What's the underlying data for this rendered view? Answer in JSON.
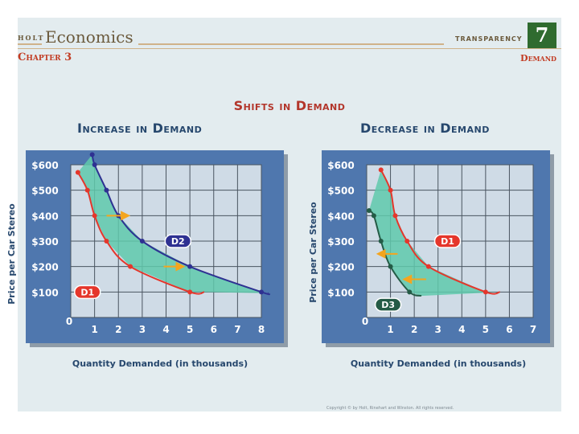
{
  "header": {
    "brand_small": "HOLT",
    "brand": "Economics",
    "transparency_label": "TRANSPARENCY",
    "transparency_number": "7",
    "chapter": "Chapter 3",
    "topic": "Demand"
  },
  "title": "Shifts in Demand",
  "footer": "Copyright © by Holt, Rinehart and Winston. All rights reserved.",
  "colors": {
    "sheet": "#e3ecef",
    "panel_blue": "#4f77ae",
    "plot_bg": "#cfdbe6",
    "d1_red": "#e5362b",
    "d2_navy": "#2e3192",
    "d3_green": "#245b46",
    "shift_fill": "#5fc9ab",
    "arrow_orange": "#f4a51e"
  },
  "chart_data": [
    {
      "type": "line",
      "title": "Increase in Demand",
      "xlabel": "Quantity Demanded (in thousands)",
      "ylabel": "Price per Car Stereo",
      "x_ticks": [
        "0",
        "1",
        "2",
        "3",
        "4",
        "5",
        "6",
        "7",
        "8"
      ],
      "y_ticks": [
        "$100",
        "$200",
        "$300",
        "$400",
        "$500",
        "$600"
      ],
      "xlim": [
        0,
        8
      ],
      "ylim": [
        0,
        600
      ],
      "grid": true,
      "shaded_between_curves": true,
      "series": [
        {
          "name": "D1",
          "points": [
            [
              0.3,
              570
            ],
            [
              0.7,
              500
            ],
            [
              1,
              400
            ],
            [
              1.5,
              300
            ],
            [
              2.5,
              200
            ],
            [
              5,
              100
            ],
            [
              5.6,
              100
            ]
          ]
        },
        {
          "name": "D2",
          "points": [
            [
              0.9,
              640
            ],
            [
              1,
              600
            ],
            [
              1.5,
              500
            ],
            [
              2,
              400
            ],
            [
              3,
              300
            ],
            [
              5,
              200
            ],
            [
              8,
              100
            ],
            [
              8.3,
              95
            ]
          ]
        }
      ],
      "curve_labels": [
        {
          "series": "D1",
          "text": "D1",
          "at": [
            0.7,
            100
          ]
        },
        {
          "series": "D2",
          "text": "D2",
          "at": [
            4.5,
            300
          ]
        }
      ],
      "shift_arrows": [
        {
          "from": [
            1.5,
            400
          ],
          "to": [
            2.3,
            400
          ]
        },
        {
          "from": [
            3.9,
            200
          ],
          "to": [
            4.6,
            200
          ]
        }
      ]
    },
    {
      "type": "line",
      "title": "Decrease in Demand",
      "xlabel": "Quantity Demanded (in thousands)",
      "ylabel": "Price per Car Stereo",
      "x_ticks": [
        "0",
        "1",
        "2",
        "3",
        "4",
        "5",
        "6",
        "7"
      ],
      "y_ticks": [
        "$100",
        "$200",
        "$300",
        "$400",
        "$500",
        "$600"
      ],
      "xlim": [
        0,
        7
      ],
      "ylim": [
        0,
        600
      ],
      "grid": true,
      "shaded_between_curves": true,
      "series": [
        {
          "name": "D1",
          "points": [
            [
              0.6,
              580
            ],
            [
              1,
              500
            ],
            [
              1.2,
              400
            ],
            [
              1.7,
              300
            ],
            [
              2.6,
              200
            ],
            [
              5,
              100
            ],
            [
              5.6,
              100
            ]
          ]
        },
        {
          "name": "D3",
          "points": [
            [
              0.1,
              420
            ],
            [
              0.3,
              400
            ],
            [
              0.6,
              300
            ],
            [
              1,
              200
            ],
            [
              1.8,
              100
            ],
            [
              2.3,
              85
            ]
          ]
        }
      ],
      "curve_labels": [
        {
          "series": "D1",
          "text": "D1",
          "at": [
            3.4,
            300
          ]
        },
        {
          "series": "D3",
          "text": "D3",
          "at": [
            0.9,
            50
          ]
        }
      ],
      "shift_arrows": [
        {
          "from": [
            1.3,
            250
          ],
          "to": [
            0.6,
            250
          ]
        },
        {
          "from": [
            2.5,
            150
          ],
          "to": [
            1.7,
            150
          ]
        }
      ]
    }
  ]
}
